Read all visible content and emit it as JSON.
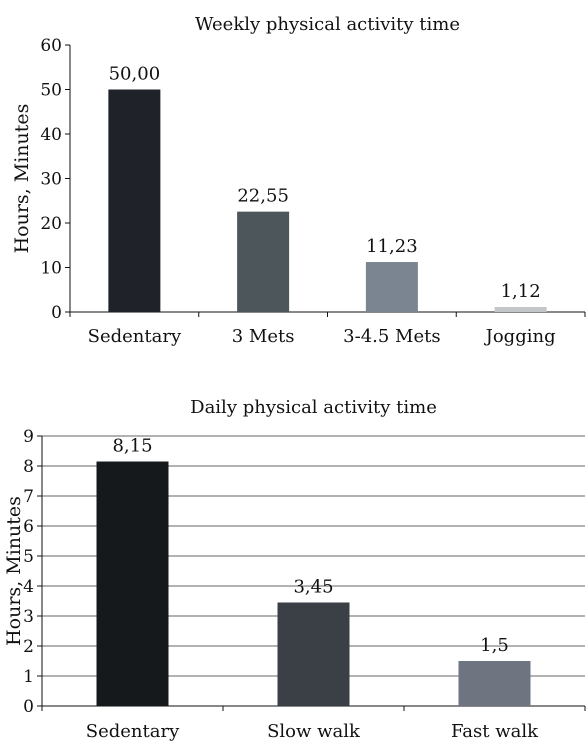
{
  "chart_data": [
    {
      "type": "bar",
      "title": "Weekly physical activity time",
      "ylabel": "Hours, Minutes",
      "xlabel": "",
      "categories": [
        "Sedentary",
        "3 Mets",
        "3-4.5 Mets",
        "Jogging"
      ],
      "values": [
        50.0,
        22.55,
        11.23,
        1.12
      ],
      "data_labels": [
        "50,00",
        "22,55",
        "11,23",
        "1,12"
      ],
      "ylim": [
        0,
        60
      ],
      "yticks": [
        0,
        10,
        20,
        30,
        40,
        50,
        60
      ],
      "grid": false,
      "legend": "none",
      "colors": [
        "#1f2329",
        "#4c565b",
        "#7a8591",
        "#c3c6c9"
      ]
    },
    {
      "type": "bar",
      "title": "Daily physical activity time",
      "ylabel": "Hours, Minutes",
      "xlabel": "",
      "categories": [
        "Sedentary",
        "Slow walk",
        "Fast walk"
      ],
      "values": [
        8.15,
        3.45,
        1.5
      ],
      "data_labels": [
        "8,15",
        "3,45",
        "1,5"
      ],
      "ylim": [
        0,
        9
      ],
      "yticks": [
        0,
        1,
        2,
        3,
        4,
        5,
        6,
        7,
        8,
        9
      ],
      "grid": true,
      "legend": "none",
      "colors": [
        "#16191b",
        "#3a4046",
        "#6e7480"
      ]
    }
  ]
}
